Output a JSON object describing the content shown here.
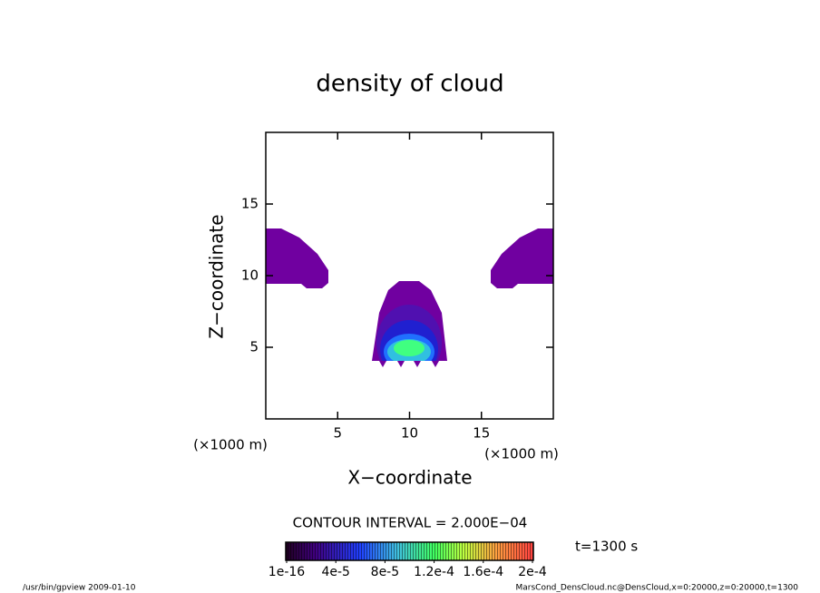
{
  "chart_data": {
    "type": "contour",
    "title": "density of cloud",
    "x_label": "X−coordinate",
    "y_label": "Z−coordinate",
    "x_unit": "(×1000 m)",
    "y_unit": "(×1000 m)",
    "xlim": [
      0,
      20
    ],
    "ylim": [
      0,
      20
    ],
    "xticks": [
      5,
      10,
      15
    ],
    "yticks": [
      5,
      10,
      15
    ],
    "contour_interval": "CONTOUR INTERVAL = 2.000E−04",
    "time_label": "t=1300 s",
    "colorbar": {
      "lim": [
        1e-16,
        0.0002
      ],
      "ticks": [
        {
          "value": 1e-16,
          "label": "1e-16"
        },
        {
          "value": 4e-05,
          "label": "4e-5"
        },
        {
          "value": 8e-05,
          "label": "8e-5"
        },
        {
          "value": 0.00012,
          "label": "1.2e-4"
        },
        {
          "value": 0.00016,
          "label": "1.6e-4"
        },
        {
          "value": 0.0002,
          "label": "2e-4"
        }
      ]
    },
    "footer_left": "/usr/bin/gpview   2009-01-10",
    "footer_right": "MarsCond_DensCloud.nc@DensCloud,x=0:20000,z=0:20000,t=1300"
  }
}
